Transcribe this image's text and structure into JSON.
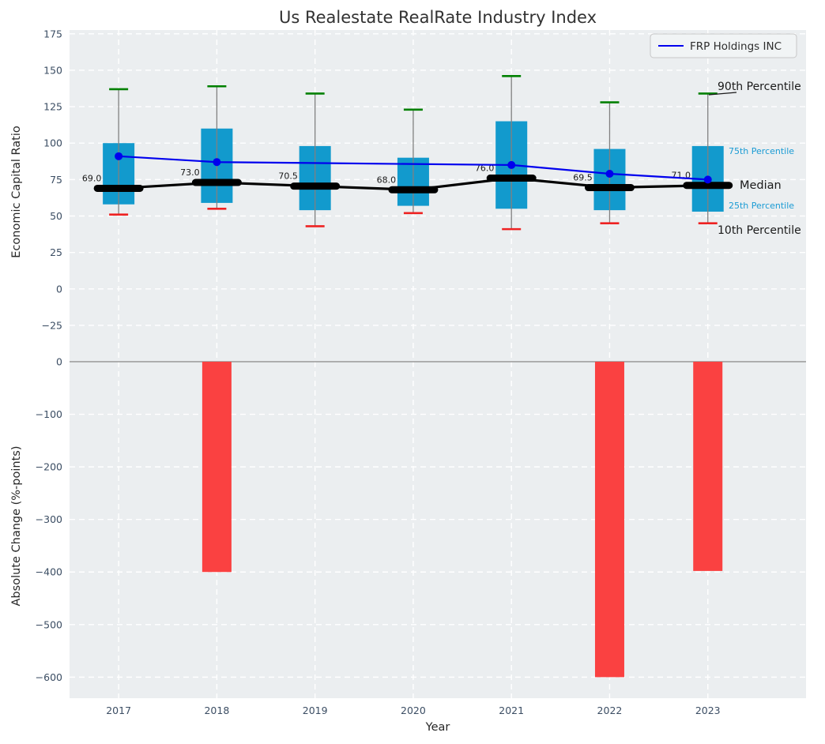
{
  "title": "Us Realestate RealRate Industry Index",
  "legend": {
    "label": "FRP Holdings INC"
  },
  "right_labels": {
    "p90": "90th Percentile",
    "p75": "75th Percentile",
    "median": "Median",
    "p25": "25th Percentile",
    "p10": "10th Percentile"
  },
  "colors": {
    "panel_bg": "#ebeef0",
    "grid": "#ffffff",
    "box_fill": "#129acd",
    "whisker": "#808080",
    "cap_top": "#008000",
    "cap_bottom": "#ee2222",
    "median_line": "#000000",
    "company_line": "#0000ee",
    "bar_fill": "#fa4141",
    "tick_label": "#3b4d63",
    "axis_label": "#262626",
    "annotation_dark": "#1a1a1a",
    "annotation_cyan": "#1a9bd4",
    "zero_line": "#a0a0a0",
    "legend_bg": "#f2f4f5",
    "legend_border": "#c7c7c7",
    "title_color": "#323232"
  },
  "layout": {
    "xlim": [
      2016.5,
      2024.0
    ]
  },
  "chart_data": [
    {
      "type": "boxplot+line",
      "ylabel": "Economic Capital Ratio",
      "ylim": [
        -44,
        177.6
      ],
      "yticks": [
        175,
        150,
        125,
        100,
        75,
        50,
        25,
        0,
        -25
      ],
      "categories": [
        "2017",
        "2018",
        "2019",
        "2020",
        "2021",
        "2022",
        "2023"
      ],
      "boxes": [
        {
          "year": 2017,
          "p10": 51,
          "p25": 58,
          "median": 69.0,
          "p75": 100,
          "p90": 137,
          "label": "69.0"
        },
        {
          "year": 2018,
          "p10": 55,
          "p25": 59,
          "median": 73.0,
          "p75": 110,
          "p90": 139,
          "label": "73.0"
        },
        {
          "year": 2019,
          "p10": 43,
          "p25": 54,
          "median": 70.5,
          "p75": 98,
          "p90": 134,
          "label": "70.5"
        },
        {
          "year": 2020,
          "p10": 52,
          "p25": 57,
          "median": 68.0,
          "p75": 90,
          "p90": 123,
          "label": "68.0"
        },
        {
          "year": 2021,
          "p10": 41,
          "p25": 55,
          "median": 76.0,
          "p75": 115,
          "p90": 146,
          "label": "76.0"
        },
        {
          "year": 2022,
          "p10": 45,
          "p25": 54,
          "median": 69.5,
          "p75": 96,
          "p90": 128,
          "label": "69.5"
        },
        {
          "year": 2023,
          "p10": 45,
          "p25": 53,
          "median": 71.0,
          "p75": 98,
          "p90": 134,
          "label": "71.0"
        }
      ],
      "series": [
        {
          "name": "FRP Holdings INC",
          "points": [
            {
              "x": 2017,
              "y": 91
            },
            {
              "x": 2018,
              "y": 87
            },
            {
              "x": 2021,
              "y": 85
            },
            {
              "x": 2022,
              "y": 79
            },
            {
              "x": 2023,
              "y": 75
            }
          ]
        }
      ],
      "legend_position": "upper right",
      "grid": true
    },
    {
      "type": "bar",
      "ylabel": "Absolute Change (%-points)",
      "xlabel": "Year",
      "ylim": [
        -640,
        16.5
      ],
      "yticks": [
        0,
        -100,
        -200,
        -300,
        -400,
        -500,
        -600
      ],
      "categories": [
        "2017",
        "2018",
        "2019",
        "2020",
        "2021",
        "2022",
        "2023"
      ],
      "values": [
        null,
        -400,
        null,
        null,
        null,
        -600,
        -398
      ],
      "grid": true
    }
  ]
}
